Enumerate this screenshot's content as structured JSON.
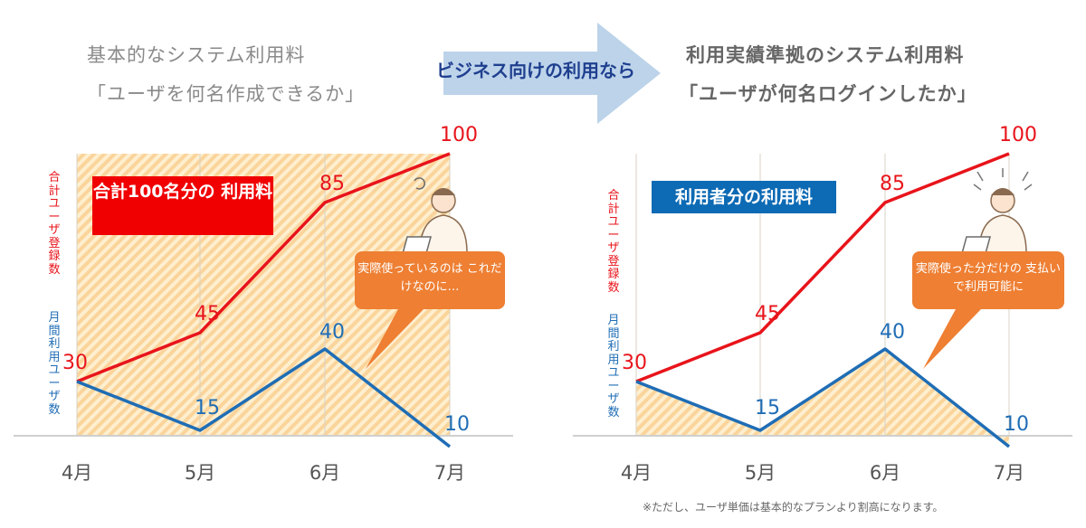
{
  "header": {
    "left_title_line1": "基本的なシステム利用料",
    "left_title_line2": "「ユーザを何名作成できるか」",
    "arrow_label": "ビジネス向けの利用なら",
    "right_title_line1": "利用実績準拠のシステム利用料",
    "right_title_line2": "「ユーザが何名ログインしたか」"
  },
  "colors": {
    "total_series": "#e8141b",
    "monthly_series": "#1f6db5",
    "fill_hatch": "#fbd49b",
    "fill_base": "#fdefcf",
    "arrow": "#bcd3ea",
    "badge_left": "#f00000",
    "badge_right": "#0d6ab4",
    "bubble": "#ee7f33"
  },
  "footnote": "※ただし、ユーザ単価は基本的なプランより割高になります。",
  "chart_data": [
    {
      "type": "line",
      "categories": [
        "4月",
        "5月",
        "6月",
        "7月"
      ],
      "series": [
        {
          "name": "合計ユーザ登録数",
          "values": [
            30,
            45,
            85,
            100
          ]
        },
        {
          "name": "月間利用ユーザ数",
          "values": [
            30,
            15,
            40,
            10
          ]
        }
      ],
      "ylim": [
        0,
        100
      ],
      "grid": true,
      "shaded_area": "total",
      "badge": "合計100名分の 利用料",
      "bubble": "実際使っているのは これだけなのに…",
      "ylabel_total": "合計ユーザ登録数",
      "ylabel_monthly": "月間利用ユーザ数"
    },
    {
      "type": "line",
      "categories": [
        "4月",
        "5月",
        "6月",
        "7月"
      ],
      "series": [
        {
          "name": "合計ユーザ登録数",
          "values": [
            30,
            45,
            85,
            100
          ]
        },
        {
          "name": "月間利用ユーザ数",
          "values": [
            30,
            15,
            40,
            10
          ]
        }
      ],
      "ylim": [
        0,
        100
      ],
      "grid": true,
      "shaded_area": "monthly",
      "badge": "利用者分の利用料",
      "bubble": "実際使った分だけの 支払いで利用可能に",
      "ylabel_total": "合計ユーザ登録数",
      "ylabel_monthly": "月間利用ユーザ数"
    }
  ]
}
